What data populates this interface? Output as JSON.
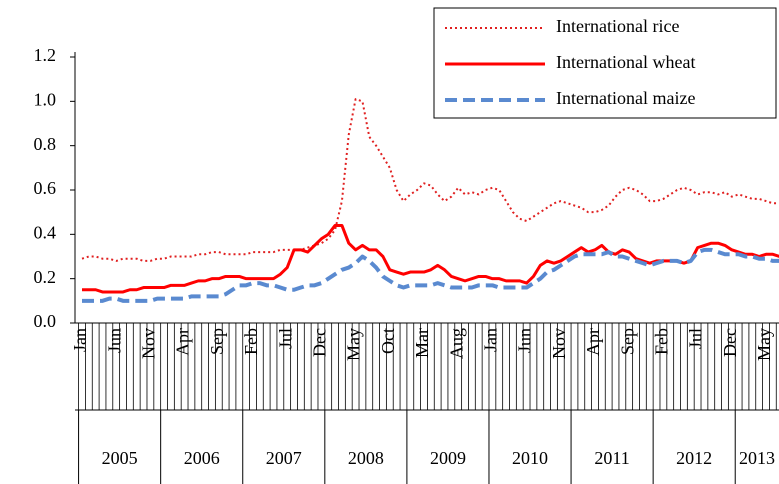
{
  "chart_data": {
    "type": "line",
    "categories": [
      "Jan",
      null,
      null,
      null,
      null,
      "Jun",
      null,
      null,
      null,
      null,
      "Nov",
      null,
      null,
      null,
      null,
      "Apr",
      null,
      null,
      null,
      null,
      "Sep",
      null,
      null,
      null,
      null,
      "Feb",
      null,
      null,
      null,
      null,
      "Jul",
      null,
      null,
      null,
      null,
      "Dec",
      null,
      null,
      null,
      null,
      "May",
      null,
      null,
      null,
      null,
      "Oct",
      null,
      null,
      null,
      null,
      "Mar",
      null,
      null,
      null,
      null,
      "Aug",
      null,
      null,
      null,
      null,
      "Jan",
      null,
      null,
      null,
      null,
      "Jun",
      null,
      null,
      null,
      null,
      "Nov",
      null,
      null,
      null,
      null,
      "Apr",
      null,
      null,
      null,
      null,
      "Sep",
      null,
      null,
      null,
      null,
      "Feb",
      null,
      null,
      null,
      null,
      "Jul",
      null,
      null,
      null,
      null,
      "Dec",
      null,
      null,
      null,
      null,
      "May",
      null,
      null
    ],
    "years": [
      "2005",
      "2006",
      "2007",
      "2008",
      "2009",
      "2010",
      "2011",
      "2012",
      "2013"
    ],
    "series": [
      {
        "name": "International rice",
        "color": "#e02020",
        "style": "dotted",
        "values": [
          0.29,
          0.3,
          0.3,
          0.29,
          0.29,
          0.28,
          0.29,
          0.29,
          0.29,
          0.28,
          0.28,
          0.29,
          0.29,
          0.3,
          0.3,
          0.3,
          0.3,
          0.31,
          0.31,
          0.32,
          0.32,
          0.31,
          0.31,
          0.31,
          0.31,
          0.32,
          0.32,
          0.32,
          0.32,
          0.33,
          0.33,
          0.33,
          0.33,
          0.34,
          0.35,
          0.36,
          0.38,
          0.42,
          0.55,
          0.85,
          1.01,
          1.0,
          0.84,
          0.8,
          0.75,
          0.7,
          0.6,
          0.55,
          0.58,
          0.6,
          0.63,
          0.62,
          0.58,
          0.55,
          0.57,
          0.61,
          0.58,
          0.59,
          0.58,
          0.6,
          0.61,
          0.6,
          0.55,
          0.5,
          0.47,
          0.46,
          0.48,
          0.5,
          0.52,
          0.54,
          0.55,
          0.54,
          0.53,
          0.52,
          0.5,
          0.5,
          0.51,
          0.53,
          0.57,
          0.6,
          0.61,
          0.6,
          0.58,
          0.55,
          0.55,
          0.56,
          0.58,
          0.6,
          0.61,
          0.6,
          0.58,
          0.59,
          0.59,
          0.58,
          0.59,
          0.57,
          0.58,
          0.57,
          0.56,
          0.56,
          0.55,
          0.54,
          0.54
        ]
      },
      {
        "name": "International wheat",
        "color": "#ff0000",
        "style": "solid",
        "values": [
          0.15,
          0.15,
          0.15,
          0.14,
          0.14,
          0.14,
          0.14,
          0.15,
          0.15,
          0.16,
          0.16,
          0.16,
          0.16,
          0.17,
          0.17,
          0.17,
          0.18,
          0.19,
          0.19,
          0.2,
          0.2,
          0.21,
          0.21,
          0.21,
          0.2,
          0.2,
          0.2,
          0.2,
          0.2,
          0.22,
          0.25,
          0.33,
          0.33,
          0.32,
          0.35,
          0.38,
          0.4,
          0.44,
          0.44,
          0.36,
          0.33,
          0.35,
          0.33,
          0.33,
          0.3,
          0.24,
          0.23,
          0.22,
          0.23,
          0.23,
          0.23,
          0.24,
          0.26,
          0.24,
          0.21,
          0.2,
          0.19,
          0.2,
          0.21,
          0.21,
          0.2,
          0.2,
          0.19,
          0.19,
          0.19,
          0.18,
          0.21,
          0.26,
          0.28,
          0.27,
          0.28,
          0.3,
          0.32,
          0.34,
          0.32,
          0.33,
          0.35,
          0.32,
          0.31,
          0.33,
          0.32,
          0.29,
          0.28,
          0.27,
          0.28,
          0.28,
          0.28,
          0.28,
          0.27,
          0.28,
          0.34,
          0.35,
          0.36,
          0.36,
          0.35,
          0.33,
          0.32,
          0.31,
          0.31,
          0.3,
          0.31,
          0.31,
          0.3
        ]
      },
      {
        "name": "International maize",
        "color": "#5a8ad0",
        "style": "dashed",
        "values": [
          0.1,
          0.1,
          0.1,
          0.1,
          0.11,
          0.11,
          0.1,
          0.1,
          0.1,
          0.1,
          0.1,
          0.11,
          0.11,
          0.11,
          0.11,
          0.11,
          0.12,
          0.12,
          0.12,
          0.12,
          0.12,
          0.13,
          0.15,
          0.17,
          0.17,
          0.18,
          0.18,
          0.17,
          0.17,
          0.16,
          0.15,
          0.15,
          0.16,
          0.17,
          0.17,
          0.18,
          0.2,
          0.22,
          0.24,
          0.25,
          0.27,
          0.3,
          0.28,
          0.25,
          0.21,
          0.19,
          0.17,
          0.16,
          0.17,
          0.17,
          0.17,
          0.17,
          0.18,
          0.17,
          0.16,
          0.16,
          0.16,
          0.16,
          0.17,
          0.17,
          0.17,
          0.16,
          0.16,
          0.16,
          0.16,
          0.16,
          0.18,
          0.2,
          0.23,
          0.24,
          0.26,
          0.28,
          0.3,
          0.31,
          0.31,
          0.31,
          0.31,
          0.32,
          0.3,
          0.3,
          0.29,
          0.28,
          0.27,
          0.26,
          0.27,
          0.28,
          0.28,
          0.28,
          0.27,
          0.28,
          0.32,
          0.33,
          0.33,
          0.32,
          0.31,
          0.31,
          0.31,
          0.3,
          0.3,
          0.29,
          0.29,
          0.28,
          0.28
        ]
      }
    ],
    "ylim": [
      0,
      1.2
    ],
    "yticks": [
      {
        "value": 0,
        "label": "0.0"
      },
      {
        "value": 0.2,
        "label": "0.2"
      },
      {
        "value": 0.4,
        "label": "0.4"
      },
      {
        "value": 0.6,
        "label": "0.6"
      },
      {
        "value": 0.8,
        "label": "0.8"
      },
      {
        "value": 1.0,
        "label": "1.0"
      },
      {
        "value": 1.2,
        "label": "1.2"
      }
    ],
    "grid": false,
    "legend": "top-right"
  }
}
